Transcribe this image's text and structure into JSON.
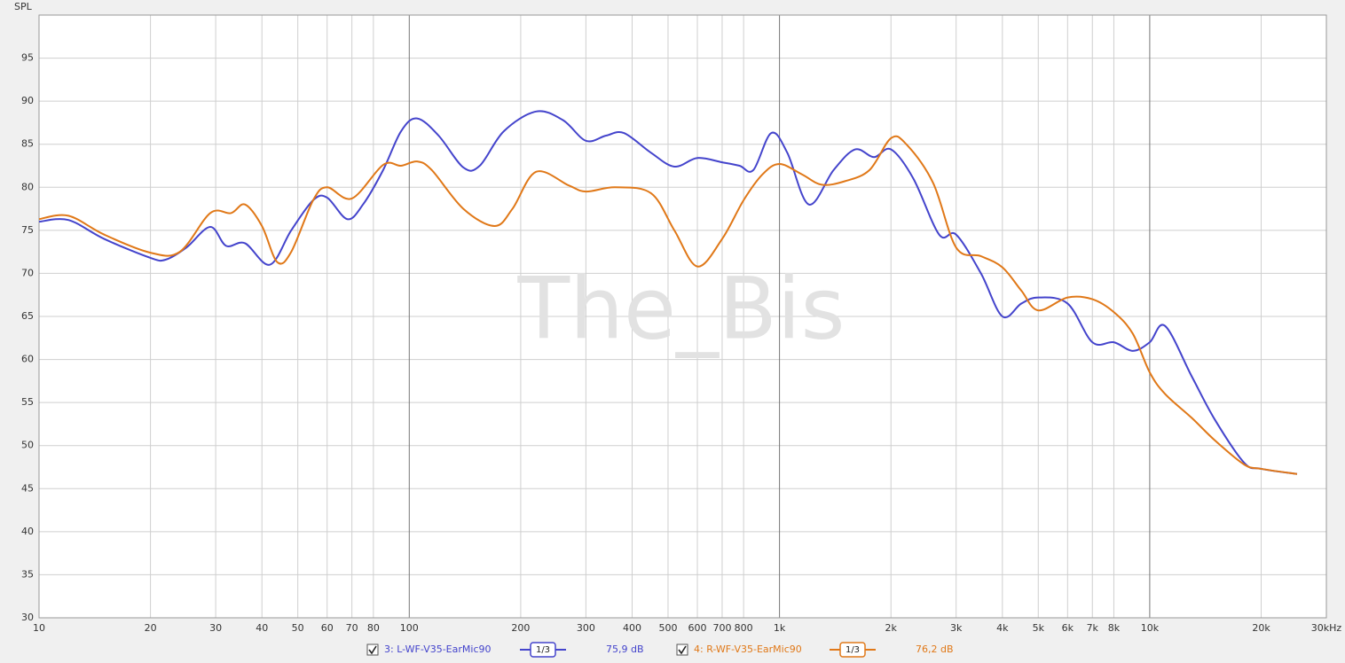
{
  "chart_data": {
    "type": "line",
    "y_label": "SPL",
    "watermark": "The_Bis",
    "xscale": "log",
    "grid": true,
    "xlim": [
      10,
      30000
    ],
    "ylim": [
      30,
      100
    ],
    "yticks": [
      30,
      35,
      40,
      45,
      50,
      55,
      60,
      65,
      70,
      75,
      80,
      85,
      90,
      95
    ],
    "xticks": [
      10,
      20,
      30,
      40,
      50,
      60,
      70,
      80,
      100,
      200,
      300,
      400,
      500,
      600,
      700,
      800,
      {
        "value": 1000,
        "label": "1k"
      },
      {
        "value": 2000,
        "label": "2k"
      },
      {
        "value": 3000,
        "label": "3k"
      },
      {
        "value": 4000,
        "label": "4k"
      },
      {
        "value": 5000,
        "label": "5k"
      },
      {
        "value": 6000,
        "label": "6k"
      },
      {
        "value": 7000,
        "label": "7k"
      },
      {
        "value": 8000,
        "label": "8k"
      },
      {
        "value": 10000,
        "label": "10k"
      },
      {
        "value": 20000,
        "label": "20k"
      },
      {
        "value": 30000,
        "label": "30kHz"
      }
    ],
    "series": [
      {
        "name": "3: L-WF-V35-EarMic90",
        "color": "#4444cc",
        "smoothing": "1/3",
        "level_label": "75,9 dB",
        "x": [
          10,
          12,
          15,
          20,
          22,
          25,
          29,
          32,
          36,
          42,
          48,
          55,
          60,
          68,
          75,
          85,
          95,
          105,
          120,
          140,
          155,
          180,
          220,
          260,
          300,
          340,
          380,
          450,
          520,
          600,
          700,
          780,
          850,
          950,
          1050,
          1200,
          1400,
          1600,
          1800,
          2000,
          2300,
          2700,
          3000,
          3500,
          4000,
          4500,
          5000,
          6000,
          7000,
          8000,
          9000,
          10000,
          11000,
          13000,
          15000,
          18000,
          20000,
          25000
        ],
        "values": [
          76.0,
          76.2,
          74,
          71.8,
          71.6,
          73,
          75.4,
          73.2,
          73.5,
          71,
          75,
          78.5,
          78.8,
          76.3,
          78,
          82,
          86.5,
          88,
          86,
          82.3,
          82.5,
          86.5,
          88.8,
          87.8,
          85.4,
          86,
          86.3,
          84,
          82.4,
          83.4,
          82.9,
          82.5,
          82,
          86.3,
          84,
          78,
          82,
          84.4,
          83.5,
          84.4,
          81,
          74.5,
          74.5,
          70,
          65,
          66.5,
          67.2,
          66.5,
          62,
          62,
          61,
          62,
          63.9,
          58,
          53,
          48,
          47.3,
          46.7
        ]
      },
      {
        "name": "4: R-WF-V35-EarMic90",
        "color": "#e07818",
        "smoothing": "1/3",
        "level_label": "76,2 dB",
        "x": [
          10,
          12,
          15,
          20,
          24,
          29,
          33,
          36,
          40,
          44,
          48,
          55,
          60,
          70,
          85,
          95,
          105,
          115,
          140,
          170,
          190,
          220,
          270,
          300,
          360,
          450,
          520,
          600,
          700,
          800,
          900,
          1000,
          1150,
          1300,
          1500,
          1750,
          2000,
          2200,
          2600,
          3000,
          3500,
          4000,
          4500,
          5000,
          6000,
          7000,
          8000,
          9000,
          10000,
          11000,
          13000,
          15000,
          18000,
          20000,
          25000
        ],
        "values": [
          76.3,
          76.7,
          74.5,
          72.4,
          72.5,
          77,
          77,
          78,
          75.5,
          71.3,
          72.5,
          78.5,
          80,
          78.7,
          82.6,
          82.5,
          83,
          82,
          77.5,
          75.5,
          77.5,
          81.8,
          80.2,
          79.5,
          80,
          79.3,
          75,
          70.8,
          74,
          78.5,
          81.5,
          82.7,
          81.5,
          80.3,
          80.7,
          82,
          85.7,
          85,
          80.5,
          73,
          72,
          70.7,
          68,
          65.7,
          67.2,
          67,
          65.5,
          63,
          58.5,
          56,
          53.2,
          50.6,
          47.8,
          47.3,
          46.7
        ]
      }
    ]
  }
}
